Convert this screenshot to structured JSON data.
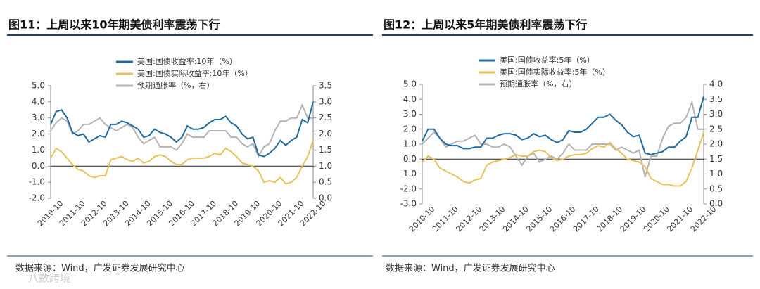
{
  "chart_data": [
    {
      "type": "line",
      "title": "图11：上周以来10年期美债利率震荡下行",
      "source": "数据来源：Wind，广发证券发展研究中心",
      "watermark": "八数跨境",
      "categories": [
        "2010-10",
        "2011-01",
        "2011-04",
        "2011-07",
        "2011-10",
        "2012-01",
        "2012-04",
        "2012-07",
        "2012-10",
        "2013-01",
        "2013-04",
        "2013-07",
        "2013-10",
        "2014-01",
        "2014-04",
        "2014-07",
        "2014-10",
        "2015-01",
        "2015-04",
        "2015-07",
        "2015-10",
        "2016-01",
        "2016-04",
        "2016-07",
        "2016-10",
        "2017-01",
        "2017-04",
        "2017-07",
        "2017-10",
        "2018-01",
        "2018-04",
        "2018-07",
        "2018-10",
        "2019-01",
        "2019-04",
        "2019-07",
        "2019-10",
        "2020-01",
        "2020-04",
        "2020-07",
        "2020-10",
        "2021-01",
        "2021-04",
        "2021-07",
        "2021-10",
        "2022-01",
        "2022-04",
        "2022-07",
        "2022-10"
      ],
      "series": [
        {
          "name": "美国:国债收益率:10年（%）",
          "color": "#1f6aa0",
          "values": [
            2.6,
            3.4,
            3.5,
            3.0,
            2.1,
            1.9,
            2.0,
            1.5,
            1.7,
            1.9,
            1.8,
            2.6,
            2.6,
            2.8,
            2.7,
            2.5,
            2.3,
            1.8,
            1.9,
            2.3,
            2.1,
            2.0,
            1.8,
            1.5,
            1.8,
            2.5,
            2.3,
            2.3,
            2.4,
            2.7,
            2.9,
            2.9,
            3.1,
            2.7,
            2.5,
            2.0,
            1.7,
            1.8,
            0.7,
            0.6,
            0.8,
            1.1,
            1.6,
            1.3,
            1.6,
            1.8,
            2.9,
            2.7,
            4.0
          ]
        },
        {
          "name": "美国:国债实际收益率:10年（%）",
          "color": "#e8c25a",
          "values": [
            0.5,
            1.1,
            0.9,
            0.5,
            0.1,
            -0.2,
            -0.3,
            -0.6,
            -0.7,
            -0.6,
            -0.6,
            0.4,
            0.5,
            0.6,
            0.4,
            0.3,
            0.5,
            0.2,
            0.3,
            0.6,
            0.7,
            0.6,
            0.3,
            0.1,
            0.1,
            0.4,
            0.5,
            0.5,
            0.5,
            0.6,
            0.8,
            0.7,
            1.1,
            0.9,
            0.6,
            0.2,
            0.1,
            0.0,
            -0.3,
            -1.0,
            -0.9,
            -1.0,
            -0.7,
            -1.1,
            -1.0,
            -0.7,
            0.0,
            0.6,
            1.6
          ]
        },
        {
          "name": "预期通胀率（%，右）",
          "color": "#b4b4b4",
          "axis": "y2",
          "values": [
            2.1,
            2.35,
            2.5,
            2.4,
            2.0,
            2.1,
            2.3,
            2.3,
            2.4,
            2.5,
            2.3,
            2.2,
            2.1,
            2.2,
            2.3,
            2.2,
            1.9,
            1.7,
            1.8,
            1.9,
            1.6,
            1.6,
            1.6,
            1.5,
            1.7,
            2.0,
            1.9,
            1.9,
            1.9,
            2.1,
            2.1,
            2.1,
            2.1,
            1.9,
            1.9,
            1.7,
            1.6,
            1.7,
            1.3,
            1.6,
            1.7,
            2.1,
            2.4,
            2.4,
            2.5,
            2.5,
            2.9,
            2.5,
            2.5
          ]
        }
      ],
      "ylim": [
        -2,
        5
      ],
      "yticks": [
        {
          "value": -2,
          "label": "-2.0"
        },
        {
          "value": -1,
          "label": "-1.0"
        },
        {
          "value": 0,
          "label": "0.0"
        },
        {
          "value": 1,
          "label": "1.0"
        },
        {
          "value": 2,
          "label": "2.0"
        },
        {
          "value": 3,
          "label": "3.0"
        },
        {
          "value": 4,
          "label": "4.0"
        },
        {
          "value": 5,
          "label": "5.0"
        }
      ],
      "y2lim": [
        0,
        3.5
      ],
      "y2ticks": [
        {
          "value": 0,
          "label": "0.0"
        },
        {
          "value": 0.5,
          "label": "0.5"
        },
        {
          "value": 1,
          "label": "1.0"
        },
        {
          "value": 1.5,
          "label": "1.5"
        },
        {
          "value": 2,
          "label": "2.0"
        },
        {
          "value": 2.5,
          "label": "2.5"
        },
        {
          "value": 3,
          "label": "3.0"
        },
        {
          "value": 3.5,
          "label": "3.5"
        }
      ],
      "grid": false
    },
    {
      "type": "line",
      "title": "图12：上周以来5年期美债利率震荡下行",
      "source": "数据来源：Wind，广发证券发展研究中心",
      "categories": [
        "2010-10",
        "2011-01",
        "2011-04",
        "2011-07",
        "2011-10",
        "2012-01",
        "2012-04",
        "2012-07",
        "2012-10",
        "2013-01",
        "2013-04",
        "2013-07",
        "2013-10",
        "2014-01",
        "2014-04",
        "2014-07",
        "2014-10",
        "2015-01",
        "2015-04",
        "2015-07",
        "2015-10",
        "2016-01",
        "2016-04",
        "2016-07",
        "2016-10",
        "2017-01",
        "2017-04",
        "2017-07",
        "2017-10",
        "2018-01",
        "2018-04",
        "2018-07",
        "2018-10",
        "2019-01",
        "2019-04",
        "2019-07",
        "2019-10",
        "2020-01",
        "2020-04",
        "2020-07",
        "2020-10",
        "2021-01",
        "2021-04",
        "2021-07",
        "2021-10",
        "2022-01",
        "2022-04",
        "2022-07",
        "2022-10"
      ],
      "series": [
        {
          "name": "美国:国债收益率:5年（%）",
          "color": "#1f6aa0",
          "values": [
            1.2,
            2.0,
            2.0,
            1.4,
            1.0,
            0.9,
            0.9,
            0.7,
            0.7,
            0.8,
            0.8,
            1.4,
            1.4,
            1.6,
            1.7,
            1.7,
            1.6,
            1.3,
            1.4,
            1.7,
            1.5,
            1.6,
            1.3,
            1.1,
            1.3,
            1.9,
            1.8,
            1.8,
            2.0,
            2.4,
            2.8,
            2.8,
            3.0,
            2.6,
            2.3,
            1.8,
            1.5,
            1.6,
            0.4,
            0.3,
            0.4,
            0.5,
            0.8,
            0.8,
            1.2,
            1.5,
            2.8,
            2.8,
            4.2
          ]
        },
        {
          "name": "美国:国债实际收益率:5年（%）",
          "color": "#e8c25a",
          "values": [
            -0.2,
            0.2,
            0,
            -0.6,
            -0.8,
            -1.0,
            -1.2,
            -1.5,
            -1.6,
            -1.4,
            -1.3,
            -0.4,
            -0.2,
            -0.1,
            0.0,
            0.1,
            0.3,
            0.2,
            0.2,
            0.5,
            0.6,
            0.5,
            0.1,
            -0.1,
            0.0,
            0.2,
            0.3,
            0.3,
            0.4,
            0.7,
            0.9,
            0.8,
            1.1,
            0.7,
            0.4,
            0.0,
            -0.1,
            -0.2,
            -0.5,
            -1.3,
            -1.5,
            -1.7,
            -1.7,
            -1.8,
            -1.8,
            -1.5,
            -0.6,
            0.6,
            1.8
          ]
        },
        {
          "name": "预期通胀率（%，右）",
          "color": "#b4b4b4",
          "axis": "y2",
          "values": [
            2.0,
            2.2,
            2.4,
            2.2,
            1.9,
            2.0,
            2.1,
            2.1,
            2.2,
            2.3,
            2.0,
            2.0,
            1.9,
            1.9,
            2.0,
            1.9,
            1.6,
            1.3,
            1.6,
            1.7,
            1.4,
            1.5,
            1.6,
            1.5,
            1.7,
            2.0,
            1.8,
            1.8,
            1.8,
            2.0,
            2.0,
            2.0,
            2.0,
            1.8,
            1.9,
            1.8,
            1.7,
            1.8,
            0.9,
            1.6,
            1.6,
            2.2,
            2.6,
            2.7,
            2.7,
            2.9,
            3.4,
            2.5,
            2.5
          ]
        }
      ],
      "ylim": [
        -3,
        5
      ],
      "yticks": [
        {
          "value": -3,
          "label": "-3.0"
        },
        {
          "value": -2,
          "label": "-2.0"
        },
        {
          "value": -1,
          "label": "-1.0"
        },
        {
          "value": 0,
          "label": "0.0"
        },
        {
          "value": 1,
          "label": "1.0"
        },
        {
          "value": 2,
          "label": "2.0"
        },
        {
          "value": 3,
          "label": "3.0"
        },
        {
          "value": 4,
          "label": "4.0"
        },
        {
          "value": 5,
          "label": "5.0"
        }
      ],
      "y2lim": [
        0,
        4
      ],
      "y2ticks": [
        {
          "value": 0,
          "label": "0.0"
        },
        {
          "value": 0.5,
          "label": "0.5"
        },
        {
          "value": 1,
          "label": "1.0"
        },
        {
          "value": 1.5,
          "label": "1.5"
        },
        {
          "value": 2,
          "label": "2.0"
        },
        {
          "value": 2.5,
          "label": "2.5"
        },
        {
          "value": 3,
          "label": "3.0"
        },
        {
          "value": 3.5,
          "label": "3.5"
        },
        {
          "value": 4,
          "label": "4.0"
        }
      ],
      "grid": false
    }
  ]
}
